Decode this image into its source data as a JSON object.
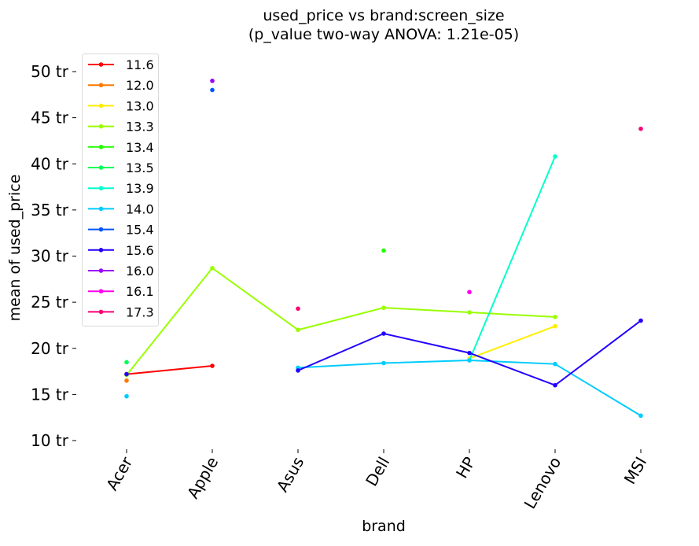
{
  "chart_data": {
    "type": "line",
    "title": "used_price vs brand:screen_size",
    "subtitle": "(p_value two-way ANOVA: 1.21e-05)",
    "xlabel": "brand",
    "ylabel": "mean of used_price",
    "categories": [
      "Acer",
      "Apple",
      "Asus",
      "Dell",
      "HP",
      "Lenovo",
      "MSI"
    ],
    "ylim": [
      10,
      52.5
    ],
    "yticks": [
      10,
      15,
      20,
      25,
      30,
      35,
      40,
      45,
      50
    ],
    "ytick_suffix": " tr",
    "grid": false,
    "legend_position": "upper-left",
    "series": [
      {
        "name": "11.6",
        "color": "#ff0000",
        "values": [
          17.2,
          18.1,
          null,
          null,
          null,
          null,
          null
        ]
      },
      {
        "name": "12.0",
        "color": "#ff7700",
        "values": [
          16.5,
          null,
          null,
          null,
          null,
          null,
          null
        ]
      },
      {
        "name": "13.0",
        "color": "#ffee00",
        "values": [
          null,
          null,
          null,
          null,
          18.9,
          22.4,
          null
        ]
      },
      {
        "name": "13.3",
        "color": "#99ff00",
        "values": [
          17.1,
          28.7,
          22.0,
          24.4,
          23.9,
          23.4,
          null
        ]
      },
      {
        "name": "13.4",
        "color": "#22ff00",
        "values": [
          null,
          null,
          null,
          30.6,
          null,
          null,
          null
        ]
      },
      {
        "name": "13.5",
        "color": "#00ff55",
        "values": [
          18.5,
          null,
          null,
          null,
          null,
          null,
          null
        ]
      },
      {
        "name": "13.9",
        "color": "#00ffcc",
        "values": [
          null,
          null,
          null,
          null,
          18.7,
          40.8,
          null
        ]
      },
      {
        "name": "14.0",
        "color": "#00ccff",
        "values": [
          14.8,
          null,
          17.9,
          18.4,
          18.7,
          18.3,
          12.7
        ]
      },
      {
        "name": "15.4",
        "color": "#0055ff",
        "values": [
          null,
          48.0,
          null,
          null,
          null,
          null,
          null
        ]
      },
      {
        "name": "15.6",
        "color": "#2200ff",
        "values": [
          17.2,
          null,
          17.6,
          21.6,
          19.5,
          16.0,
          23.0
        ]
      },
      {
        "name": "16.0",
        "color": "#9900ff",
        "values": [
          null,
          49.0,
          null,
          null,
          null,
          null,
          null
        ]
      },
      {
        "name": "16.1",
        "color": "#ff00ee",
        "values": [
          null,
          null,
          null,
          null,
          26.1,
          null,
          null
        ]
      },
      {
        "name": "17.3",
        "color": "#ff0077",
        "values": [
          null,
          null,
          24.3,
          null,
          null,
          null,
          43.8
        ]
      }
    ]
  }
}
